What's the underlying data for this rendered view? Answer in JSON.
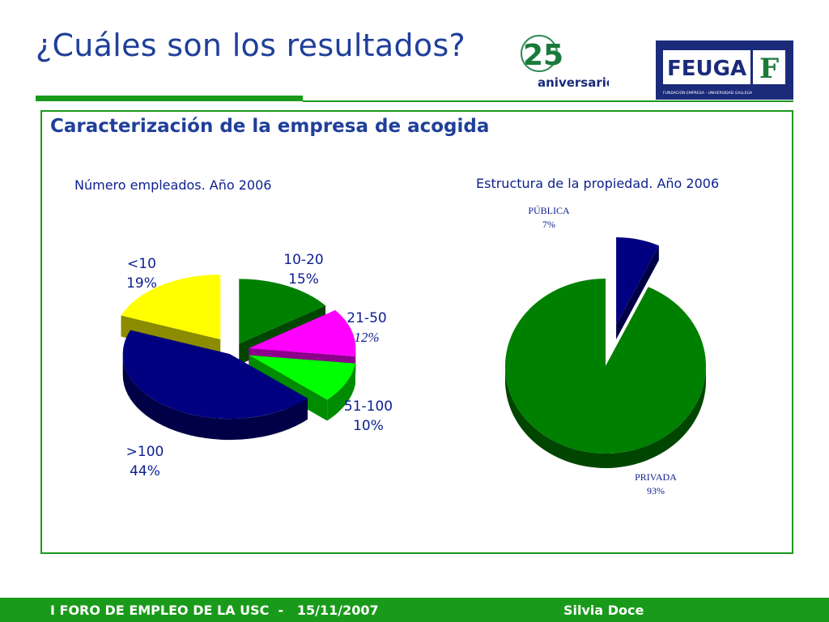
{
  "slide": {
    "title": "¿Cuáles son los resultados?",
    "subtitle": "Caracterización de la empresa de acogida"
  },
  "logos": {
    "anniversary_number": "25",
    "anniversary_text": "aniversario",
    "feuga_name": "FEUGA",
    "feuga_tagline": "FUNDACIÓN EMPRESA - UNIVERSIDAD GALLEGA",
    "feuga_mark": "F"
  },
  "footer": {
    "left": "I FORO DE EMPLEO DE LA USC  -   15/11/2007",
    "right": "Silvia Doce"
  },
  "colors": {
    "green_accent": "#1a9a1a",
    "title_blue": "#1f3f9a",
    "navy": "#0b1f8f"
  },
  "chart_data": [
    {
      "type": "pie",
      "title": "Número empleados. Año 2006",
      "slices": [
        {
          "label": "10-20",
          "value": 15,
          "text": "15%",
          "color": "#008000"
        },
        {
          "label": "21-50",
          "value": 12,
          "text": "12%",
          "color": "#ff00ff"
        },
        {
          "label": "51-100",
          "value": 10,
          "text": "10%",
          "color": "#00ff00"
        },
        {
          "label": ">100",
          "value": 44,
          "text": "44%",
          "color": "#000080"
        },
        {
          "label": "<10",
          "value": 19,
          "text": "19%",
          "color": "#ffff00"
        }
      ]
    },
    {
      "type": "pie",
      "title": "Estructura de la propiedad. Año 2006",
      "slices": [
        {
          "label": "PÚBLICA",
          "value": 7,
          "text": "7%",
          "color": "#000080"
        },
        {
          "label": "PRIVADA",
          "value": 93,
          "text": "93%",
          "color": "#008000"
        }
      ]
    }
  ]
}
